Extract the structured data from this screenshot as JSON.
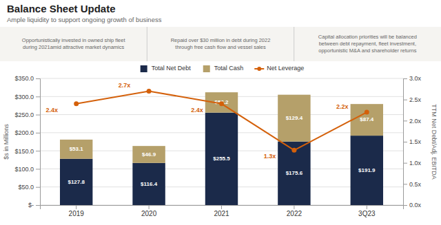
{
  "chart_data": {
    "type": "bar",
    "title": "Balance Sheet Update",
    "subtitle": "Ample liquidity to support ongoing growth of business",
    "annotations": [
      [
        "Opportunistically invested in owned ship fleet",
        "during 2021amid attractive market dynamics"
      ],
      [
        "Repaid over $30 million in debt during 2022",
        "through free cash flow and vessel sales"
      ],
      [
        "Capital allocation priorities will be balanced",
        "between debt repayment, fleet investment,",
        "opportunistic M&A and shareholder returns"
      ]
    ],
    "categories": [
      "2019",
      "2020",
      "2021",
      "2022",
      "3Q23"
    ],
    "series": [
      {
        "name": "Total Net Debt",
        "color": "#1b2a4a",
        "values": [
          127.8,
          116.4,
          255.5,
          175.6,
          191.9
        ],
        "value_labels": [
          "$127.8",
          "$116.4",
          "$255.5",
          "$175.6",
          "$191.9"
        ]
      },
      {
        "name": "Total Cash",
        "color": "#b5a06a",
        "values": [
          53.1,
          46.9,
          56.2,
          129.4,
          87.4
        ],
        "value_labels": [
          "$53.1",
          "$46.9",
          "$56.2",
          "$129.4",
          "$87.4"
        ]
      },
      {
        "name": "Net Leverage",
        "type": "line",
        "axis": "y2",
        "color": "#d4600a",
        "marker": "circle",
        "values": [
          2.4,
          2.7,
          2.4,
          1.3,
          2.2
        ],
        "value_labels": [
          "2.4x",
          "2.7x",
          "2.4x",
          "1.3x",
          "2.2x"
        ]
      }
    ],
    "stacked": true,
    "data_labels": true,
    "ylabel": "$s in Millions",
    "y2label": "TTM Net Debt/Adj. EBITDA",
    "ylim": [
      0,
      350
    ],
    "yticks": [
      {
        "value": 0,
        "label": "$-"
      },
      {
        "value": 50,
        "label": "$50.0"
      },
      {
        "value": 100,
        "label": "$100.0"
      },
      {
        "value": 150,
        "label": "$150.0"
      },
      {
        "value": 200,
        "label": "$200.0"
      },
      {
        "value": 250,
        "label": "$250.0"
      },
      {
        "value": 300,
        "label": "$300.0"
      },
      {
        "value": 350,
        "label": "$350.0"
      }
    ],
    "y2lim": [
      0,
      3.0
    ],
    "y2ticks": [
      {
        "value": 0.0,
        "label": "0.0x"
      },
      {
        "value": 0.5,
        "label": "0.5x"
      },
      {
        "value": 1.0,
        "label": "1.0x"
      },
      {
        "value": 1.5,
        "label": "1.5x"
      },
      {
        "value": 2.0,
        "label": "2.0x"
      },
      {
        "value": 2.5,
        "label": "2.5x"
      },
      {
        "value": 3.0,
        "label": "3.0x"
      }
    ],
    "grid": true,
    "legend": "top"
  }
}
